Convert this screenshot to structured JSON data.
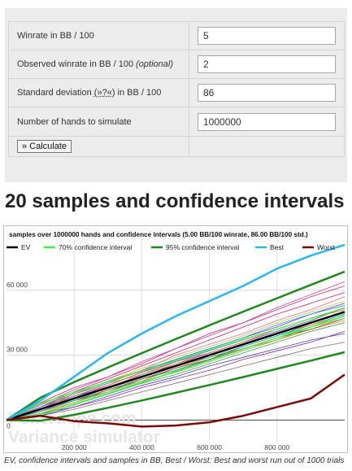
{
  "form": {
    "rows": [
      {
        "label": "Winrate in BB / 100",
        "value": "5"
      },
      {
        "label": "Observed winrate in BB / 100",
        "label_optional": "(optional)",
        "value": "2"
      },
      {
        "label_prefix": "Standard deviation",
        "help": "(»?«)",
        "label_suffix": "in BB / 100",
        "value": "86"
      },
      {
        "label": "Number of hands to simulate",
        "value": "1000000"
      }
    ],
    "button_label": "» Calculate"
  },
  "section_title": "20 samples and confidence intervals",
  "chart_data": {
    "type": "line",
    "title": "samples over 1000000 hands and confidence intervals (5.00 BB/100 winrate, 86.00 BB/100 std.)",
    "xlabel": "",
    "ylabel": "",
    "xlim": [
      0,
      1000000
    ],
    "ylim": [
      -10000,
      90000
    ],
    "x_ticks": [
      200000,
      400000,
      600000,
      800000
    ],
    "x_tick_labels": [
      "200 000",
      "400 000",
      "600 000",
      "800 000"
    ],
    "y_ticks": [
      0,
      30000,
      60000
    ],
    "y_tick_labels": [
      "0",
      "30 000",
      "60 000"
    ],
    "grid": true,
    "legend_position": "top",
    "watermark": [
      "Pokerdope.com",
      "Variance simulator"
    ],
    "x": [
      0,
      100000,
      200000,
      300000,
      400000,
      500000,
      600000,
      700000,
      800000,
      900000,
      1000000
    ],
    "series": [
      {
        "name": "EV",
        "color": "#000000",
        "width": 2.5,
        "values": [
          0,
          5000,
          10000,
          15000,
          20000,
          25000,
          30000,
          35000,
          40000,
          45000,
          50000
        ]
      },
      {
        "name": "70% confidence interval",
        "color": "#44ee44",
        "width": 1.5,
        "values": [
          0,
          7720,
          12750,
          17700,
          22600,
          27500,
          32350,
          37200,
          42000,
          46950,
          51800
        ]
      },
      {
        "name": "70% confidence interval",
        "color": "#44ee44",
        "width": 1.5,
        "legend": false,
        "values": [
          0,
          2280,
          7250,
          12300,
          17400,
          22500,
          27650,
          32800,
          38000,
          43050,
          48200
        ]
      },
      {
        "name": "95% confidence interval",
        "color": "#1e8a1e",
        "width": 2.5,
        "values": [
          0,
          10330,
          17540,
          24340,
          30950,
          37400,
          43800,
          50100,
          56300,
          62500,
          68600
        ]
      },
      {
        "name": "95% confidence interval",
        "color": "#1e8a1e",
        "width": 2.5,
        "legend": false,
        "values": [
          0,
          -330,
          2460,
          5660,
          9050,
          12600,
          16200,
          19900,
          23700,
          27500,
          31400
        ]
      },
      {
        "name": "Best",
        "color": "#29b6f6",
        "width": 2.5,
        "values": [
          0,
          9000,
          20000,
          31000,
          40000,
          48000,
          55000,
          62000,
          70000,
          76000,
          81000
        ]
      },
      {
        "name": "Worst",
        "color": "#7b0a0a",
        "width": 2.5,
        "values": [
          0,
          2000,
          -500,
          -1500,
          -3000,
          -2500,
          -1000,
          2000,
          6000,
          10000,
          21000
        ]
      },
      {
        "name": "",
        "color": "#9c27b0",
        "width": 0.8,
        "legend": false,
        "values": [
          0,
          6000,
          11000,
          16000,
          22000,
          28000,
          33000,
          38000,
          43000,
          49000,
          54000
        ]
      },
      {
        "name": "",
        "color": "#ff6f00",
        "width": 0.8,
        "legend": false,
        "values": [
          0,
          4000,
          8000,
          14000,
          18000,
          24000,
          29000,
          33000,
          37000,
          42000,
          46000
        ]
      },
      {
        "name": "",
        "color": "#e91e63",
        "width": 0.8,
        "legend": false,
        "values": [
          0,
          8000,
          15000,
          20000,
          26000,
          33000,
          40000,
          45000,
          51000,
          57000,
          62000
        ]
      },
      {
        "name": "",
        "color": "#3949ab",
        "width": 0.8,
        "legend": false,
        "values": [
          0,
          3000,
          6000,
          11000,
          16000,
          20000,
          25000,
          29000,
          33000,
          37000,
          40000
        ]
      },
      {
        "name": "",
        "color": "#00897b",
        "width": 0.8,
        "legend": false,
        "values": [
          0,
          5000,
          9000,
          13000,
          19000,
          23000,
          28000,
          34000,
          39000,
          44000,
          49000
        ]
      },
      {
        "name": "",
        "color": "#c0ca33",
        "width": 0.8,
        "legend": false,
        "values": [
          0,
          7000,
          12000,
          18000,
          24000,
          29000,
          34000,
          39000,
          45000,
          50000,
          55000
        ]
      },
      {
        "name": "",
        "color": "#8d6e63",
        "width": 0.8,
        "legend": false,
        "values": [
          0,
          2000,
          5000,
          9000,
          13000,
          17000,
          21000,
          25000,
          29000,
          33000,
          36000
        ]
      },
      {
        "name": "",
        "color": "#d81b60",
        "width": 0.8,
        "legend": false,
        "values": [
          0,
          6000,
          13000,
          19000,
          25000,
          31000,
          37000,
          43000,
          49000,
          54000,
          59000
        ]
      },
      {
        "name": "",
        "color": "#5e35b1",
        "width": 0.8,
        "legend": false,
        "values": [
          0,
          4000,
          10000,
          15000,
          20000,
          26000,
          31000,
          36000,
          41000,
          46000,
          52000
        ]
      },
      {
        "name": "",
        "color": "#fb8c00",
        "width": 0.8,
        "legend": false,
        "values": [
          0,
          5000,
          11000,
          17000,
          21000,
          26000,
          30000,
          35000,
          40000,
          44000,
          48000
        ]
      },
      {
        "name": "",
        "color": "#43a047",
        "width": 0.8,
        "legend": false,
        "values": [
          0,
          3000,
          7000,
          12000,
          17000,
          21000,
          26000,
          31000,
          36000,
          41000,
          45000
        ]
      },
      {
        "name": "",
        "color": "#039be5",
        "width": 0.8,
        "legend": false,
        "values": [
          0,
          6000,
          12000,
          17000,
          23000,
          28000,
          33000,
          38000,
          44000,
          49000,
          53000
        ]
      },
      {
        "name": "",
        "color": "#6d4c41",
        "width": 0.8,
        "legend": false,
        "values": [
          0,
          4000,
          9000,
          14000,
          19000,
          24000,
          28000,
          33000,
          38000,
          42000,
          47000
        ]
      },
      {
        "name": "",
        "color": "#ab47bc",
        "width": 0.8,
        "legend": false,
        "values": [
          0,
          7000,
          14000,
          20000,
          27000,
          33000,
          39000,
          45000,
          52000,
          58000,
          64000
        ]
      },
      {
        "name": "",
        "color": "#ef5350",
        "width": 0.8,
        "legend": false,
        "values": [
          0,
          5000,
          10000,
          16000,
          22000,
          27000,
          31000,
          36000,
          42000,
          47000,
          51000
        ]
      },
      {
        "name": "",
        "color": "#7cb342",
        "width": 0.8,
        "legend": false,
        "values": [
          0,
          3000,
          8000,
          13000,
          18000,
          22000,
          27000,
          32000,
          37000,
          43000,
          47000
        ]
      },
      {
        "name": "",
        "color": "#5c6bc0",
        "width": 0.8,
        "legend": false,
        "values": [
          0,
          6000,
          11000,
          15000,
          21000,
          27000,
          32000,
          37000,
          42000,
          47000,
          52000
        ]
      },
      {
        "name": "",
        "color": "#26a69a",
        "width": 0.8,
        "legend": false,
        "values": [
          0,
          4000,
          9000,
          15000,
          20000,
          25000,
          29000,
          34000,
          39000,
          43000,
          48000
        ]
      },
      {
        "name": "",
        "color": "#f06292",
        "width": 0.8,
        "legend": false,
        "values": [
          0,
          5000,
          12000,
          18000,
          23000,
          30000,
          35000,
          40000,
          46000,
          51000,
          57000
        ]
      },
      {
        "name": "",
        "color": "#8e24aa",
        "width": 0.8,
        "legend": false,
        "values": [
          0,
          2000,
          6000,
          10000,
          15000,
          19000,
          23000,
          28000,
          32000,
          36000,
          41000
        ]
      }
    ]
  },
  "caption": "EV, confidence intervals and samples in BB, Best / Worst: Best and worst run out of 1000 trials"
}
